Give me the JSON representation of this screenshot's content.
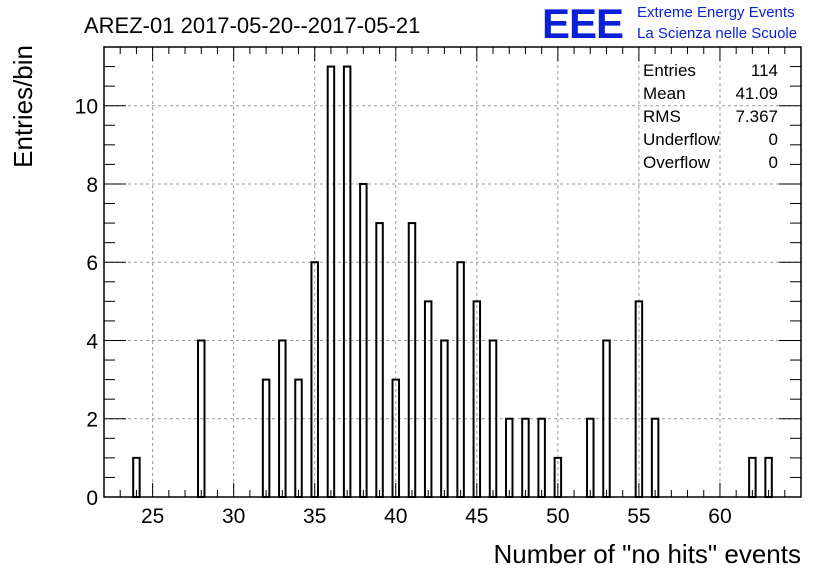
{
  "chart_data": {
    "type": "bar",
    "title": "AREZ-01 2017-05-20--2017-05-21",
    "xlabel": "Number of \"no hits\" events",
    "ylabel": "Entries/bin",
    "xlim": [
      22,
      65
    ],
    "ylim": [
      0,
      11.5
    ],
    "xticks": [
      "25",
      "30",
      "35",
      "40",
      "45",
      "50",
      "55",
      "60"
    ],
    "yticks": [
      "0",
      "2",
      "4",
      "6",
      "8",
      "10"
    ],
    "grid": true,
    "bin_width": 0.4,
    "bins": [
      {
        "x": 24,
        "y": 1
      },
      {
        "x": 28,
        "y": 4
      },
      {
        "x": 32,
        "y": 3
      },
      {
        "x": 33,
        "y": 4
      },
      {
        "x": 34,
        "y": 3
      },
      {
        "x": 35,
        "y": 6
      },
      {
        "x": 36,
        "y": 11
      },
      {
        "x": 37,
        "y": 11
      },
      {
        "x": 38,
        "y": 8
      },
      {
        "x": 39,
        "y": 7
      },
      {
        "x": 40,
        "y": 3
      },
      {
        "x": 41,
        "y": 7
      },
      {
        "x": 42,
        "y": 5
      },
      {
        "x": 43,
        "y": 4
      },
      {
        "x": 44,
        "y": 6
      },
      {
        "x": 45,
        "y": 5
      },
      {
        "x": 46,
        "y": 4
      },
      {
        "x": 47,
        "y": 2
      },
      {
        "x": 48,
        "y": 2
      },
      {
        "x": 49,
        "y": 2
      },
      {
        "x": 50,
        "y": 1
      },
      {
        "x": 52,
        "y": 2
      },
      {
        "x": 53,
        "y": 4
      },
      {
        "x": 55,
        "y": 5
      },
      {
        "x": 56,
        "y": 2
      },
      {
        "x": 62,
        "y": 1
      },
      {
        "x": 63,
        "y": 1
      }
    ],
    "stats": [
      {
        "label": "Entries",
        "value": "114"
      },
      {
        "label": "Mean",
        "value": "41.09"
      },
      {
        "label": "RMS",
        "value": "7.367"
      },
      {
        "label": "Underflow",
        "value": "0"
      },
      {
        "label": "Overflow",
        "value": "0"
      }
    ]
  },
  "logo": {
    "mark": "EEE",
    "line1": "Extreme Energy Events",
    "line2": "La Scienza nelle Scuole",
    "color": "#0b1fd6"
  },
  "colors": {
    "bar_stroke": "#000000",
    "grid": "#9a9a9a"
  }
}
